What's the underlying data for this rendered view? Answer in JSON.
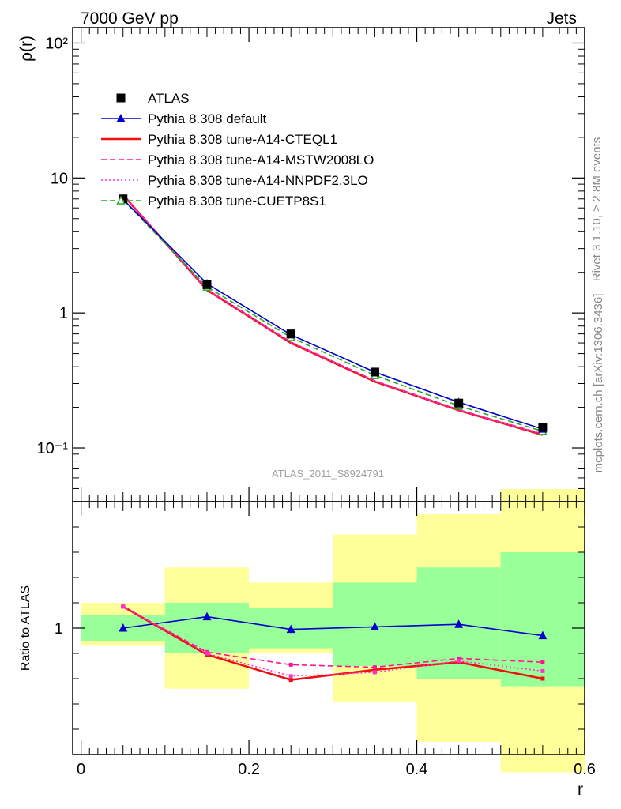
{
  "header": {
    "left": "7000 GeV pp",
    "right": "Jets"
  },
  "side_labels": {
    "rivet": "Rivet 3.1.10, ≥ 2.8M events",
    "source": "mcplots.cern.ch [arXiv:1306.3436]"
  },
  "watermark": "ATLAS_2011_S8924791",
  "chart_data": [
    {
      "type": "line",
      "panel": "main",
      "ylabel": "ρ(r)",
      "yscale": "log",
      "ylim": [
        0.04,
        130
      ],
      "xlim": [
        -0.01,
        0.6
      ],
      "ytick_labels": [
        "10⁻¹",
        "1",
        "10",
        "10²"
      ],
      "legend_position": "upper-left",
      "x": [
        0.05,
        0.15,
        0.25,
        0.35,
        0.45,
        0.55
      ],
      "series": [
        {
          "name": "ATLAS",
          "style": "data",
          "color": "#000000",
          "values": [
            7.0,
            1.62,
            0.7,
            0.365,
            0.215,
            0.142
          ]
        },
        {
          "name": "Pythia 8.308 default",
          "style": "solid-triangle",
          "color": "#0000cc",
          "values": [
            6.95,
            1.65,
            0.69,
            0.365,
            0.218,
            0.138
          ]
        },
        {
          "name": "Pythia 8.308 tune-A14-CTEQL1",
          "style": "solid-thick",
          "color": "#ee1111",
          "values": [
            7.5,
            1.48,
            0.6,
            0.31,
            0.19,
            0.125
          ]
        },
        {
          "name": "Pythia 8.308 tune-A14-MSTW2008LO",
          "style": "dashed",
          "color": "#ff1493",
          "values": [
            7.5,
            1.5,
            0.61,
            0.315,
            0.192,
            0.127
          ]
        },
        {
          "name": "Pythia 8.308 tune-A14-NNPDF2.3LO",
          "style": "dotted",
          "color": "#ff33cc",
          "values": [
            7.5,
            1.49,
            0.605,
            0.312,
            0.19,
            0.126
          ]
        },
        {
          "name": "Pythia 8.308 tune-CUETP8S1",
          "style": "dashed-open-triangle",
          "color": "#22aa22",
          "values": [
            6.9,
            1.56,
            0.66,
            0.345,
            0.205,
            0.133
          ]
        }
      ]
    },
    {
      "type": "line",
      "panel": "ratio",
      "ylabel": "Ratio to ATLAS",
      "xlabel": "r",
      "ylim": [
        0.5,
        1.5
      ],
      "xlim": [
        -0.01,
        0.6
      ],
      "xtick_labels": [
        "0",
        "0.2",
        "0.4",
        "0.6"
      ],
      "ytick_labels": [
        "1"
      ],
      "bins": [
        [
          0.0,
          0.1
        ],
        [
          0.1,
          0.2
        ],
        [
          0.2,
          0.3
        ],
        [
          0.3,
          0.4
        ],
        [
          0.4,
          0.5
        ],
        [
          0.5,
          0.6
        ]
      ],
      "band_inner": [
        [
          0.95,
          1.05
        ],
        [
          0.9,
          1.1
        ],
        [
          0.92,
          1.08
        ],
        [
          0.85,
          1.18
        ],
        [
          0.8,
          1.24
        ],
        [
          0.77,
          1.3
        ]
      ],
      "band_outer": [
        [
          0.93,
          1.1
        ],
        [
          0.76,
          1.24
        ],
        [
          0.9,
          1.18
        ],
        [
          0.71,
          1.37
        ],
        [
          0.55,
          1.45
        ],
        [
          0.43,
          1.55
        ]
      ],
      "x": [
        0.05,
        0.15,
        0.25,
        0.35,
        0.45,
        0.55
      ],
      "series": [
        {
          "name": "Pythia 8.308 default",
          "color": "#0000cc",
          "values": [
            1.0,
            1.045,
            0.995,
            1.005,
            1.015,
            0.97
          ]
        },
        {
          "name": "Pythia 8.308 tune-A14-CTEQL1",
          "color": "#ee1111",
          "values": [
            1.085,
            0.895,
            0.795,
            0.835,
            0.865,
            0.8
          ]
        },
        {
          "name": "Pythia 8.308 tune-A14-MSTW2008LO",
          "color": "#ff1493",
          "values": [
            1.085,
            0.905,
            0.855,
            0.845,
            0.88,
            0.865
          ]
        },
        {
          "name": "Pythia 8.308 tune-A14-NNPDF2.3LO",
          "color": "#ff33cc",
          "values": [
            1.085,
            0.9,
            0.81,
            0.825,
            0.87,
            0.83
          ]
        }
      ]
    }
  ]
}
